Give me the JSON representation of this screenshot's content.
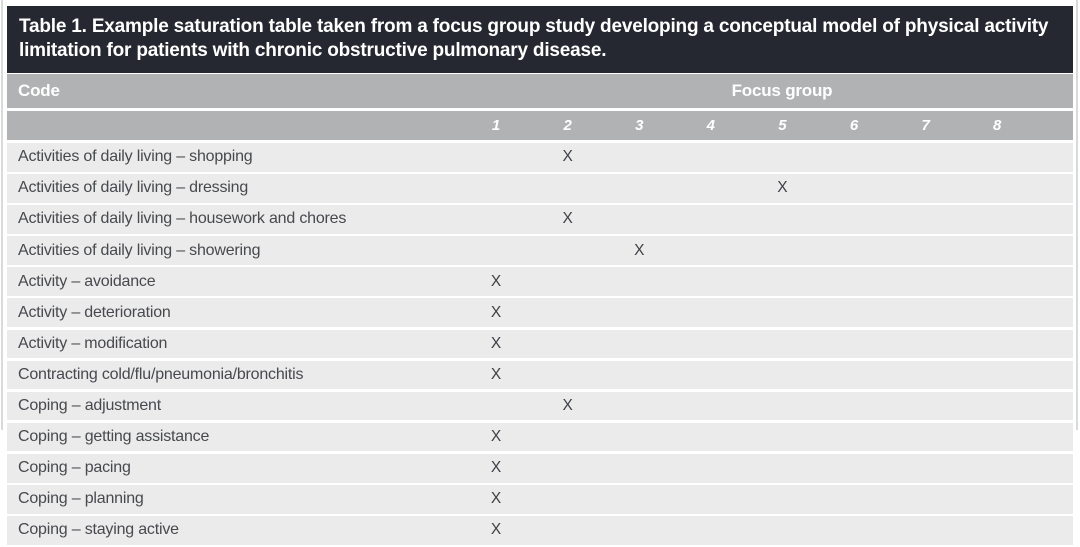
{
  "table": {
    "title": "Table 1. Example saturation table taken from a focus group study developing a conceptual model of physical activity limitation for patients with chronic obstructive pulmonary disease.",
    "code_header": "Code",
    "group_header": "Focus group",
    "focus_groups": [
      "1",
      "2",
      "3",
      "4",
      "5",
      "6",
      "7",
      "8"
    ],
    "mark": "X",
    "rows": [
      {
        "label": "Activities of daily living – shopping",
        "groups": [
          2
        ]
      },
      {
        "label": "Activities of daily living – dressing",
        "groups": [
          5
        ]
      },
      {
        "label": "Activities of daily living – housework and chores",
        "groups": [
          2
        ]
      },
      {
        "label": "Activities of daily living – showering",
        "groups": [
          3
        ]
      },
      {
        "label": "Activity – avoidance",
        "groups": [
          1
        ]
      },
      {
        "label": "Activity – deterioration",
        "groups": [
          1
        ]
      },
      {
        "label": "Activity – modification",
        "groups": [
          1
        ]
      },
      {
        "label": "Contracting cold/flu/pneumonia/bronchitis",
        "groups": [
          1
        ]
      },
      {
        "label": "Coping – adjustment",
        "groups": [
          2
        ]
      },
      {
        "label": "Coping – getting assistance",
        "groups": [
          1
        ]
      },
      {
        "label": "Coping – pacing",
        "groups": [
          1
        ]
      },
      {
        "label": "Coping – planning",
        "groups": [
          1
        ]
      },
      {
        "label": "Coping – staying active",
        "groups": [
          1
        ]
      }
    ]
  },
  "colors": {
    "title_bg": "#252831",
    "header_bg": "#b0b2b4",
    "row_bg": "#ebebec",
    "header_text": "#ffffff",
    "body_text": "#47494d",
    "mark_text": "#3e4145"
  }
}
